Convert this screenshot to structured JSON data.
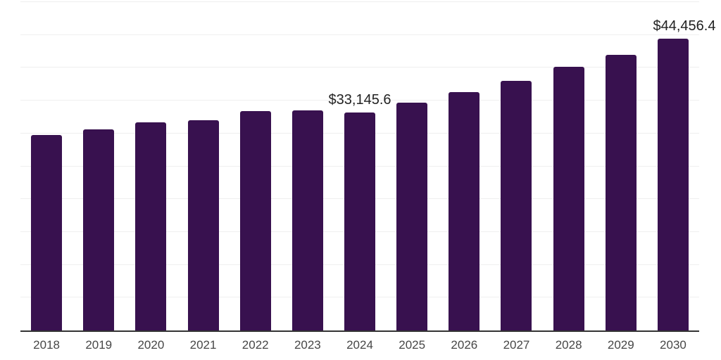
{
  "chart_data": {
    "type": "bar",
    "title": "",
    "xlabel": "",
    "ylabel": "",
    "categories": [
      "2018",
      "2019",
      "2020",
      "2021",
      "2022",
      "2023",
      "2024",
      "2025",
      "2026",
      "2027",
      "2028",
      "2029",
      "2030"
    ],
    "values": [
      29800,
      30600,
      31700,
      32000,
      33400,
      33500,
      33145.6,
      34700,
      36300,
      38000,
      40100,
      42000,
      44456.4
    ],
    "data_labels": {
      "2024": "$33,145.6",
      "2030": "$44,456.4"
    },
    "ylim": [
      0,
      50000
    ],
    "grid_interval": 5000,
    "grid": "horizontal",
    "legend_position": "none",
    "y_tick_labels_visible": false,
    "colors": {
      "bar": "#38114F",
      "gridline": "#EFEFEF",
      "axis_line": "#333333",
      "tick_label": "#474747",
      "data_label": "#222222",
      "background": "#FFFFFF"
    }
  }
}
